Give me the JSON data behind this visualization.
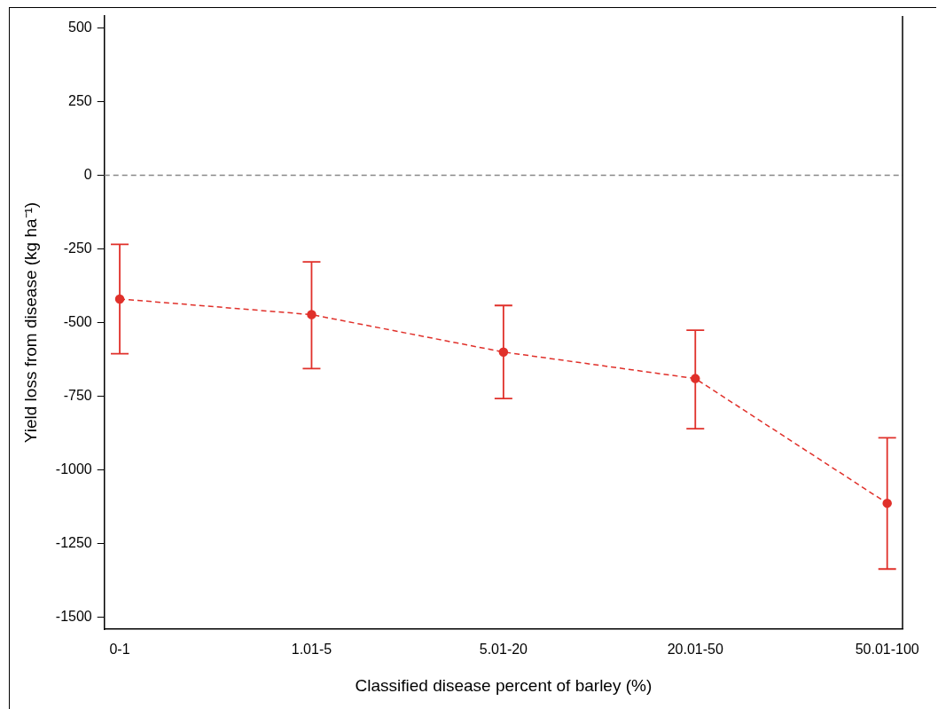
{
  "chart_data": {
    "type": "line",
    "xlabel": "Classified disease percent of barley (%)",
    "ylabel": "Yield loss from disease (kg ha⁻¹)",
    "categories": [
      "0-1",
      "1.01-5",
      "5.01-20",
      "20.01-50",
      "50.01-100"
    ],
    "series": [
      {
        "color": "#e0302a",
        "values": [
          -420,
          -473,
          -600,
          -690,
          -1113
        ],
        "errors": [
          [
            -606,
            -235
          ],
          [
            -656,
            -294
          ],
          [
            -758,
            -442
          ],
          [
            -860,
            -526
          ],
          [
            -1336,
            -891
          ]
        ]
      }
    ],
    "ylim": [
      -1540,
      540
    ],
    "yticks": [
      -1500,
      -1250,
      -1000,
      -750,
      -500,
      -250,
      0,
      250,
      500
    ],
    "ref_lines": [
      {
        "axis": "y",
        "value": 0,
        "color": "#888888",
        "line_style": "dashed"
      }
    ],
    "marker": "circle",
    "line_style": "dashed",
    "grid": false,
    "legend": false
  }
}
